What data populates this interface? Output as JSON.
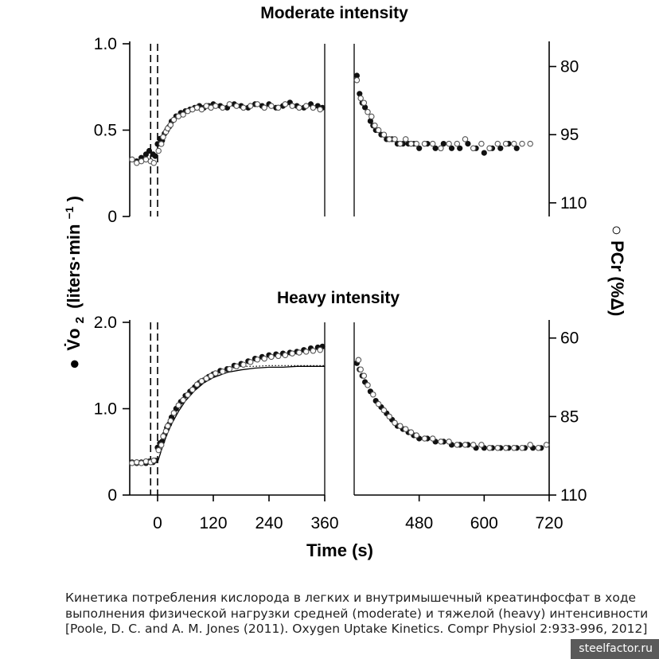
{
  "chart_data": [
    {
      "type": "scatter",
      "panel": "moderate-vo2",
      "title": "Moderate intensity",
      "xlim": [
        -60,
        360
      ],
      "ylim": [
        0,
        1.0
      ],
      "yticks": [
        0,
        0.5,
        1.0
      ],
      "ytick_labels": [
        "0",
        "0.5",
        "1.0"
      ],
      "markers_dashed_at": [
        -15,
        0
      ],
      "series": [
        {
          "marker": "filled",
          "x": [
            -55,
            -45,
            -35,
            -25,
            -18,
            -10,
            -5,
            0,
            5,
            10,
            15,
            20,
            25,
            30,
            40,
            50,
            60,
            70,
            80,
            90,
            100,
            110,
            120,
            135,
            150,
            165,
            180,
            195,
            210,
            225,
            240,
            255,
            270,
            285,
            300,
            315,
            330,
            345,
            355
          ],
          "y": [
            0.33,
            0.32,
            0.34,
            0.36,
            0.38,
            0.36,
            0.35,
            0.42,
            0.45,
            0.44,
            0.48,
            0.5,
            0.52,
            0.55,
            0.58,
            0.6,
            0.61,
            0.62,
            0.63,
            0.64,
            0.63,
            0.64,
            0.65,
            0.64,
            0.63,
            0.65,
            0.64,
            0.63,
            0.65,
            0.64,
            0.65,
            0.63,
            0.64,
            0.66,
            0.64,
            0.63,
            0.65,
            0.64,
            0.63
          ]
        },
        {
          "marker": "open",
          "x": [
            -55,
            -45,
            -35,
            -25,
            -15,
            -8,
            2,
            8,
            12,
            18,
            22,
            28,
            35,
            45,
            55,
            65,
            75,
            85,
            95,
            105,
            115,
            125,
            140,
            155,
            170,
            185,
            200,
            215,
            230,
            245,
            260,
            275,
            290,
            305,
            320,
            335,
            350
          ],
          "y": [
            0.33,
            0.31,
            0.32,
            0.33,
            0.32,
            0.31,
            0.38,
            0.42,
            0.46,
            0.49,
            0.51,
            0.53,
            0.56,
            0.58,
            0.59,
            0.61,
            0.62,
            0.63,
            0.62,
            0.64,
            0.63,
            0.64,
            0.63,
            0.65,
            0.64,
            0.63,
            0.64,
            0.65,
            0.63,
            0.64,
            0.63,
            0.65,
            0.64,
            0.63,
            0.64,
            0.63,
            0.62
          ]
        }
      ]
    },
    {
      "type": "scatter",
      "panel": "moderate-pcr",
      "xlim": [
        360,
        720
      ],
      "ylim": [
        113,
        75
      ],
      "yticks": [
        80,
        95,
        110
      ],
      "ytick_labels": [
        "80",
        "95",
        "110"
      ],
      "series": [
        {
          "marker": "filled",
          "x": [
            365,
            370,
            375,
            380,
            385,
            390,
            395,
            400,
            410,
            420,
            430,
            440,
            450,
            460,
            470,
            480,
            495,
            510,
            525,
            540,
            555,
            570,
            585,
            600,
            615,
            630,
            645,
            660
          ],
          "y": [
            82,
            86,
            88,
            89,
            90,
            92,
            93,
            94,
            95,
            96,
            96,
            97,
            97,
            97,
            97,
            98,
            97,
            98,
            97,
            98,
            98,
            97,
            98,
            99,
            98,
            98,
            97,
            98
          ]
        },
        {
          "marker": "open",
          "x": [
            365,
            372,
            378,
            385,
            392,
            398,
            405,
            415,
            425,
            435,
            445,
            455,
            465,
            475,
            490,
            505,
            520,
            535,
            550,
            565,
            580,
            595,
            610,
            625,
            640,
            655,
            670,
            685
          ],
          "y": [
            83,
            87,
            88,
            90,
            91,
            93,
            94,
            95,
            96,
            96,
            97,
            96,
            97,
            97,
            97,
            97,
            98,
            97,
            97,
            96,
            98,
            97,
            98,
            97,
            97,
            97,
            97,
            97
          ]
        }
      ]
    },
    {
      "type": "scatter",
      "panel": "heavy-vo2",
      "title": "Heavy intensity",
      "xlim": [
        -60,
        360
      ],
      "ylim": [
        0,
        2.0
      ],
      "yticks": [
        0,
        1.0,
        2.0
      ],
      "ytick_labels": [
        "0",
        "1.0",
        "2.0"
      ],
      "xticks": [
        0,
        120,
        240,
        360
      ],
      "xtick_labels": [
        "0",
        "120",
        "240",
        "360"
      ],
      "markers_dashed_at": [
        -15,
        0
      ],
      "series": [
        {
          "marker": "filled",
          "x": [
            -55,
            -45,
            -35,
            -25,
            -18,
            -10,
            -5,
            0,
            5,
            10,
            15,
            20,
            25,
            30,
            40,
            50,
            60,
            70,
            80,
            90,
            100,
            110,
            120,
            135,
            150,
            165,
            180,
            195,
            210,
            225,
            240,
            255,
            270,
            285,
            300,
            315,
            330,
            345,
            355
          ],
          "y": [
            0.38,
            0.37,
            0.38,
            0.37,
            0.39,
            0.38,
            0.4,
            0.55,
            0.6,
            0.62,
            0.7,
            0.78,
            0.82,
            0.9,
            1.0,
            1.08,
            1.15,
            1.2,
            1.25,
            1.3,
            1.33,
            1.37,
            1.4,
            1.44,
            1.46,
            1.5,
            1.52,
            1.55,
            1.58,
            1.6,
            1.62,
            1.63,
            1.64,
            1.65,
            1.66,
            1.68,
            1.7,
            1.71,
            1.72
          ]
        },
        {
          "marker": "open",
          "x": [
            -55,
            -45,
            -35,
            -25,
            -15,
            -8,
            2,
            8,
            12,
            18,
            22,
            28,
            35,
            45,
            55,
            65,
            75,
            85,
            95,
            105,
            115,
            125,
            140,
            155,
            170,
            185,
            200,
            215,
            230,
            245,
            260,
            275,
            290,
            305,
            320,
            335,
            350
          ],
          "y": [
            0.37,
            0.38,
            0.37,
            0.39,
            0.38,
            0.4,
            0.52,
            0.58,
            0.68,
            0.74,
            0.8,
            0.86,
            0.95,
            1.04,
            1.1,
            1.16,
            1.22,
            1.28,
            1.32,
            1.35,
            1.38,
            1.41,
            1.43,
            1.46,
            1.49,
            1.51,
            1.54,
            1.57,
            1.58,
            1.6,
            1.61,
            1.62,
            1.64,
            1.65,
            1.66,
            1.67,
            1.68
          ]
        }
      ],
      "fit_lines": [
        {
          "style": "solid",
          "x": [
            -60,
            0,
            10,
            20,
            30,
            45,
            60,
            80,
            100,
            120,
            150,
            180,
            210,
            240,
            270,
            300,
            330,
            360
          ],
          "y": [
            0.38,
            0.38,
            0.55,
            0.7,
            0.82,
            0.97,
            1.09,
            1.21,
            1.3,
            1.36,
            1.42,
            1.45,
            1.47,
            1.48,
            1.48,
            1.49,
            1.49,
            1.49
          ]
        },
        {
          "style": "dotted",
          "x": [
            150,
            180,
            210,
            240,
            270,
            300,
            330,
            360
          ],
          "y": [
            1.48,
            1.49,
            1.49,
            1.5,
            1.5,
            1.5,
            1.5,
            1.5
          ]
        }
      ]
    },
    {
      "type": "scatter",
      "panel": "heavy-pcr",
      "xlim": [
        360,
        720
      ],
      "ylim": [
        110,
        55
      ],
      "yticks": [
        60,
        85,
        110
      ],
      "ytick_labels": [
        "60",
        "85",
        "110"
      ],
      "xticks": [
        480,
        600,
        720
      ],
      "xtick_labels": [
        "480",
        "600",
        "720"
      ],
      "series": [
        {
          "marker": "filled",
          "x": [
            365,
            370,
            375,
            380,
            390,
            400,
            410,
            420,
            430,
            440,
            450,
            460,
            470,
            480,
            495,
            510,
            525,
            540,
            555,
            570,
            585,
            600,
            615,
            630,
            645,
            660,
            675,
            690,
            705
          ],
          "y": [
            68,
            70,
            72,
            74,
            77,
            80,
            82,
            84,
            86,
            88,
            89,
            90,
            91,
            92,
            92,
            93,
            93,
            94,
            94,
            94,
            95,
            95,
            95,
            95,
            95,
            95,
            95,
            95,
            95
          ]
        },
        {
          "marker": "open",
          "x": [
            368,
            372,
            378,
            385,
            395,
            405,
            415,
            425,
            435,
            445,
            455,
            465,
            475,
            490,
            505,
            520,
            535,
            550,
            565,
            580,
            595,
            610,
            625,
            640,
            655,
            670,
            685,
            700,
            715
          ],
          "y": [
            67,
            70,
            72,
            75,
            78,
            81,
            83,
            85,
            87,
            88,
            89,
            90,
            91,
            92,
            92,
            93,
            93,
            94,
            94,
            94,
            94,
            95,
            95,
            95,
            95,
            95,
            94,
            95,
            94
          ]
        }
      ]
    }
  ],
  "axes": {
    "left_label_symbol": "●",
    "left_label_main": "V̇o",
    "left_label_sub": "2",
    "left_label_units": "(liters·min",
    "left_label_exp": "−1",
    "left_label_close": ")",
    "right_label": "○ PCr (%Δ)",
    "x_label": "Time (s)"
  },
  "caption": "Кинетика потребления кислорода в легких и внутримышечный креатинфосфат в ходе выполнения физической нагрузки средней (moderate) и тяжелой (heavy) интенсивности [Poole, D. C. and A. M. Jones (2011). Oxygen Uptake Kinetics. Compr Physiol 2:933-996, 2012]",
  "watermark": "steelfactor.ru"
}
